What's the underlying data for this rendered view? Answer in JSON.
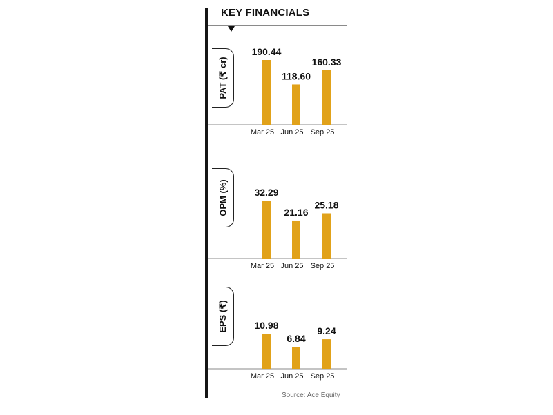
{
  "title": "KEY FINANCIALS",
  "source": "Source: Ace Equity",
  "colors": {
    "bar": "#E1A21A",
    "axis": "#8a8a8a",
    "text": "#111111"
  },
  "chart_data": [
    {
      "type": "bar",
      "ylabel": "PAT (₹ cr)",
      "categories": [
        "Mar 25",
        "Jun 25",
        "Sep 25"
      ],
      "values": [
        190.44,
        118.6,
        160.33
      ],
      "value_labels": [
        "190.44",
        "118.60",
        "160.33"
      ]
    },
    {
      "type": "bar",
      "ylabel": "OPM (%)",
      "categories": [
        "Mar 25",
        "Jun 25",
        "Sep 25"
      ],
      "values": [
        32.29,
        21.16,
        25.18
      ],
      "value_labels": [
        "32.29",
        "21.16",
        "25.18"
      ]
    },
    {
      "type": "bar",
      "ylabel": "EPS (₹)",
      "categories": [
        "Mar 25",
        "Jun 25",
        "Sep 25"
      ],
      "values": [
        10.98,
        6.84,
        9.24
      ],
      "value_labels": [
        "10.98",
        "6.84",
        "9.24"
      ]
    }
  ]
}
